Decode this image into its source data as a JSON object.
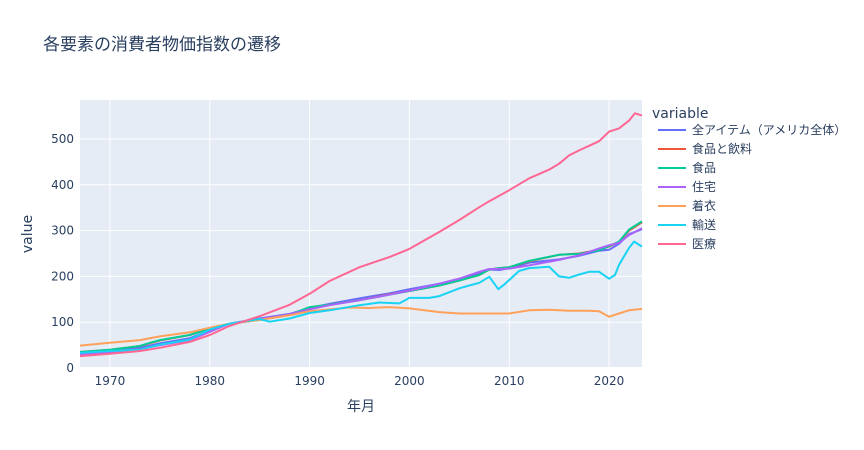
{
  "chart_data": {
    "type": "line",
    "title": "各要素の消費者物価指数の遷移",
    "xlabel": "年月",
    "ylabel": "value",
    "xlim": [
      1967,
      2023.3
    ],
    "ylim": [
      0,
      585
    ],
    "x_ticks": [
      1970,
      1980,
      1990,
      2000,
      2010,
      2020
    ],
    "y_ticks": [
      0,
      100,
      200,
      300,
      400,
      500
    ],
    "legend_title": "variable",
    "legend_position": "right",
    "grid": true,
    "series": [
      {
        "name": "全アイテム（アメリカ全体）",
        "color": "#636efa",
        "points": [
          [
            1967,
            33
          ],
          [
            1970,
            38
          ],
          [
            1973,
            44
          ],
          [
            1975,
            54
          ],
          [
            1978,
            65
          ],
          [
            1980,
            82
          ],
          [
            1982,
            97
          ],
          [
            1985,
            108
          ],
          [
            1988,
            118
          ],
          [
            1990,
            131
          ],
          [
            1992,
            140
          ],
          [
            1995,
            152
          ],
          [
            1998,
            163
          ],
          [
            2000,
            172
          ],
          [
            2003,
            184
          ],
          [
            2005,
            195
          ],
          [
            2007,
            207
          ],
          [
            2008,
            215
          ],
          [
            2009,
            214
          ],
          [
            2010,
            218
          ],
          [
            2012,
            230
          ],
          [
            2015,
            237
          ],
          [
            2017,
            245
          ],
          [
            2019,
            256
          ],
          [
            2020,
            258
          ],
          [
            2021,
            271
          ],
          [
            2022,
            292
          ],
          [
            2023.3,
            303
          ]
        ]
      },
      {
        "name": "食品と飲料",
        "color": "#ef553b",
        "points": [
          [
            1967,
            35
          ],
          [
            1970,
            40
          ],
          [
            1973,
            48
          ],
          [
            1975,
            60
          ],
          [
            1978,
            72
          ],
          [
            1980,
            86
          ],
          [
            1982,
            97
          ],
          [
            1985,
            105
          ],
          [
            1988,
            116
          ],
          [
            1990,
            132
          ],
          [
            1992,
            138
          ],
          [
            1995,
            148
          ],
          [
            1998,
            161
          ],
          [
            2000,
            168
          ],
          [
            2003,
            180
          ],
          [
            2005,
            191
          ],
          [
            2007,
            203
          ],
          [
            2008,
            215
          ],
          [
            2009,
            218
          ],
          [
            2010,
            220
          ],
          [
            2012,
            233
          ],
          [
            2015,
            247
          ],
          [
            2017,
            250
          ],
          [
            2019,
            258
          ],
          [
            2020,
            265
          ],
          [
            2021,
            275
          ],
          [
            2022,
            300
          ],
          [
            2023.3,
            318
          ]
        ]
      },
      {
        "name": "食品",
        "color": "#00cc96",
        "points": [
          [
            1967,
            35
          ],
          [
            1970,
            40
          ],
          [
            1973,
            48
          ],
          [
            1974,
            55
          ],
          [
            1975,
            61
          ],
          [
            1978,
            72
          ],
          [
            1980,
            86
          ],
          [
            1982,
            97
          ],
          [
            1985,
            105
          ],
          [
            1988,
            116
          ],
          [
            1990,
            133
          ],
          [
            1992,
            138
          ],
          [
            1995,
            148
          ],
          [
            1998,
            160
          ],
          [
            2000,
            168
          ],
          [
            2003,
            180
          ],
          [
            2005,
            191
          ],
          [
            2007,
            203
          ],
          [
            2008,
            215
          ],
          [
            2009,
            218
          ],
          [
            2010,
            220
          ],
          [
            2012,
            234
          ],
          [
            2015,
            247
          ],
          [
            2017,
            249
          ],
          [
            2019,
            257
          ],
          [
            2020,
            266
          ],
          [
            2021,
            276
          ],
          [
            2022,
            302
          ],
          [
            2023.3,
            320
          ]
        ]
      },
      {
        "name": "住宅",
        "color": "#ab63fa",
        "points": [
          [
            1967,
            30
          ],
          [
            1970,
            35
          ],
          [
            1973,
            41
          ],
          [
            1975,
            50
          ],
          [
            1978,
            61
          ],
          [
            1980,
            79
          ],
          [
            1982,
            97
          ],
          [
            1985,
            107
          ],
          [
            1988,
            117
          ],
          [
            1990,
            128
          ],
          [
            1992,
            137
          ],
          [
            1995,
            148
          ],
          [
            1998,
            160
          ],
          [
            2000,
            169
          ],
          [
            2003,
            184
          ],
          [
            2005,
            195
          ],
          [
            2007,
            210
          ],
          [
            2008,
            216
          ],
          [
            2009,
            216
          ],
          [
            2010,
            217
          ],
          [
            2012,
            224
          ],
          [
            2015,
            236
          ],
          [
            2017,
            246
          ],
          [
            2019,
            261
          ],
          [
            2020,
            268
          ],
          [
            2021,
            273
          ],
          [
            2022,
            290
          ],
          [
            2023.3,
            305
          ]
        ]
      },
      {
        "name": "着衣",
        "color": "#ffa15a",
        "points": [
          [
            1967,
            49
          ],
          [
            1970,
            55
          ],
          [
            1973,
            61
          ],
          [
            1975,
            69
          ],
          [
            1978,
            78
          ],
          [
            1980,
            88
          ],
          [
            1982,
            97
          ],
          [
            1985,
            105
          ],
          [
            1988,
            115
          ],
          [
            1990,
            124
          ],
          [
            1992,
            128
          ],
          [
            1994,
            132
          ],
          [
            1996,
            131
          ],
          [
            1998,
            133
          ],
          [
            2000,
            130
          ],
          [
            2003,
            122
          ],
          [
            2005,
            119
          ],
          [
            2007,
            119
          ],
          [
            2010,
            119
          ],
          [
            2012,
            126
          ],
          [
            2014,
            127
          ],
          [
            2016,
            125
          ],
          [
            2018,
            125
          ],
          [
            2019,
            124
          ],
          [
            2020,
            112
          ],
          [
            2021,
            119
          ],
          [
            2022,
            126
          ],
          [
            2023.3,
            129
          ]
        ]
      },
      {
        "name": "輸送",
        "color": "#19d3f3",
        "points": [
          [
            1967,
            33
          ],
          [
            1970,
            37
          ],
          [
            1973,
            40
          ],
          [
            1975,
            51
          ],
          [
            1978,
            62
          ],
          [
            1980,
            84
          ],
          [
            1982,
            97
          ],
          [
            1985,
            107
          ],
          [
            1986,
            101
          ],
          [
            1988,
            108
          ],
          [
            1990,
            120
          ],
          [
            1992,
            126
          ],
          [
            1995,
            137
          ],
          [
            1997,
            143
          ],
          [
            1999,
            141
          ],
          [
            2000,
            153
          ],
          [
            2002,
            153
          ],
          [
            2003,
            157
          ],
          [
            2005,
            174
          ],
          [
            2006,
            180
          ],
          [
            2007,
            186
          ],
          [
            2008,
            199
          ],
          [
            2008.9,
            172
          ],
          [
            2009.5,
            182
          ],
          [
            2010,
            192
          ],
          [
            2011,
            212
          ],
          [
            2012,
            218
          ],
          [
            2014,
            221
          ],
          [
            2015,
            200
          ],
          [
            2016,
            197
          ],
          [
            2017,
            204
          ],
          [
            2018,
            210
          ],
          [
            2019,
            210
          ],
          [
            2020,
            195
          ],
          [
            2020.6,
            203
          ],
          [
            2021,
            225
          ],
          [
            2022,
            262
          ],
          [
            2022.5,
            276
          ],
          [
            2023.3,
            265
          ]
        ]
      },
      {
        "name": "医療",
        "color": "#ff6692",
        "points": [
          [
            1967,
            26
          ],
          [
            1970,
            31
          ],
          [
            1973,
            37
          ],
          [
            1975,
            44
          ],
          [
            1978,
            57
          ],
          [
            1980,
            72
          ],
          [
            1982,
            92
          ],
          [
            1985,
            113
          ],
          [
            1988,
            138
          ],
          [
            1990,
            162
          ],
          [
            1992,
            190
          ],
          [
            1995,
            220
          ],
          [
            1998,
            242
          ],
          [
            2000,
            260
          ],
          [
            2003,
            297
          ],
          [
            2005,
            323
          ],
          [
            2007,
            351
          ],
          [
            2008,
            364
          ],
          [
            2010,
            388
          ],
          [
            2012,
            414
          ],
          [
            2014,
            433
          ],
          [
            2015,
            446
          ],
          [
            2016,
            464
          ],
          [
            2017,
            475
          ],
          [
            2018,
            485
          ],
          [
            2019,
            495
          ],
          [
            2020,
            516
          ],
          [
            2021,
            523
          ],
          [
            2022,
            540
          ],
          [
            2022.6,
            556
          ],
          [
            2023.3,
            551
          ]
        ]
      }
    ]
  }
}
